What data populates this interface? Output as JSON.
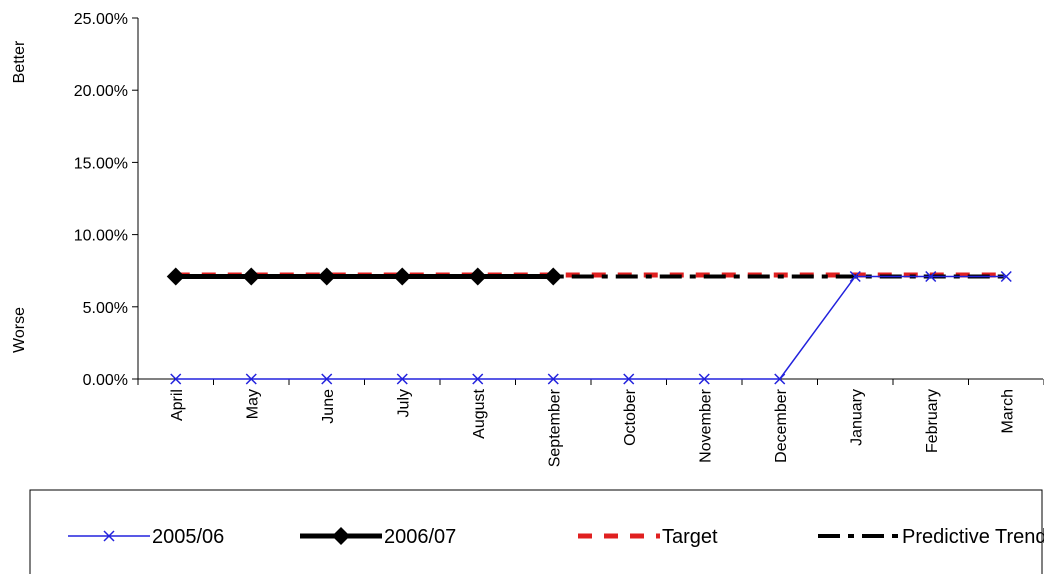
{
  "chart_data": {
    "type": "line",
    "categories": [
      "April",
      "May",
      "June",
      "July",
      "August",
      "September",
      "October",
      "November",
      "December",
      "January",
      "February",
      "March"
    ],
    "ylim": [
      0,
      0.25
    ],
    "yticks": [
      0,
      0.05,
      0.1,
      0.15,
      0.2,
      0.25
    ],
    "ytick_labels": [
      "0.00%",
      "5.00%",
      "10.00%",
      "15.00%",
      "20.00%",
      "25.00%"
    ],
    "side_labels": {
      "top": "Better",
      "bottom": "Worse"
    },
    "grid": false,
    "legend_position": "bottom",
    "series": [
      {
        "name": "2005/06",
        "color": "#2222dd",
        "marker": "x",
        "style": "solid",
        "values": [
          0,
          0,
          0,
          0,
          0,
          0,
          0,
          0,
          0,
          0.071,
          0.071,
          0.071
        ]
      },
      {
        "name": "2006/07",
        "color": "#000000",
        "marker": "diamond",
        "style": "solid-thick",
        "values": [
          0.071,
          0.071,
          0.071,
          0.071,
          0.071,
          0.071,
          null,
          null,
          null,
          null,
          null,
          null
        ]
      },
      {
        "name": "Target",
        "color": "#e02020",
        "marker": "none",
        "style": "dashed",
        "values": [
          0.072,
          0.072,
          0.072,
          0.072,
          0.072,
          0.072,
          0.072,
          0.072,
          0.072,
          0.072,
          0.072,
          0.072
        ]
      },
      {
        "name": "Predictive Trend",
        "color": "#000000",
        "marker": "none",
        "style": "dash-dot",
        "values": [
          0.071,
          0.071,
          0.071,
          0.071,
          0.071,
          0.071,
          0.071,
          0.071,
          0.071,
          0.071,
          0.071,
          0.071
        ]
      }
    ]
  }
}
